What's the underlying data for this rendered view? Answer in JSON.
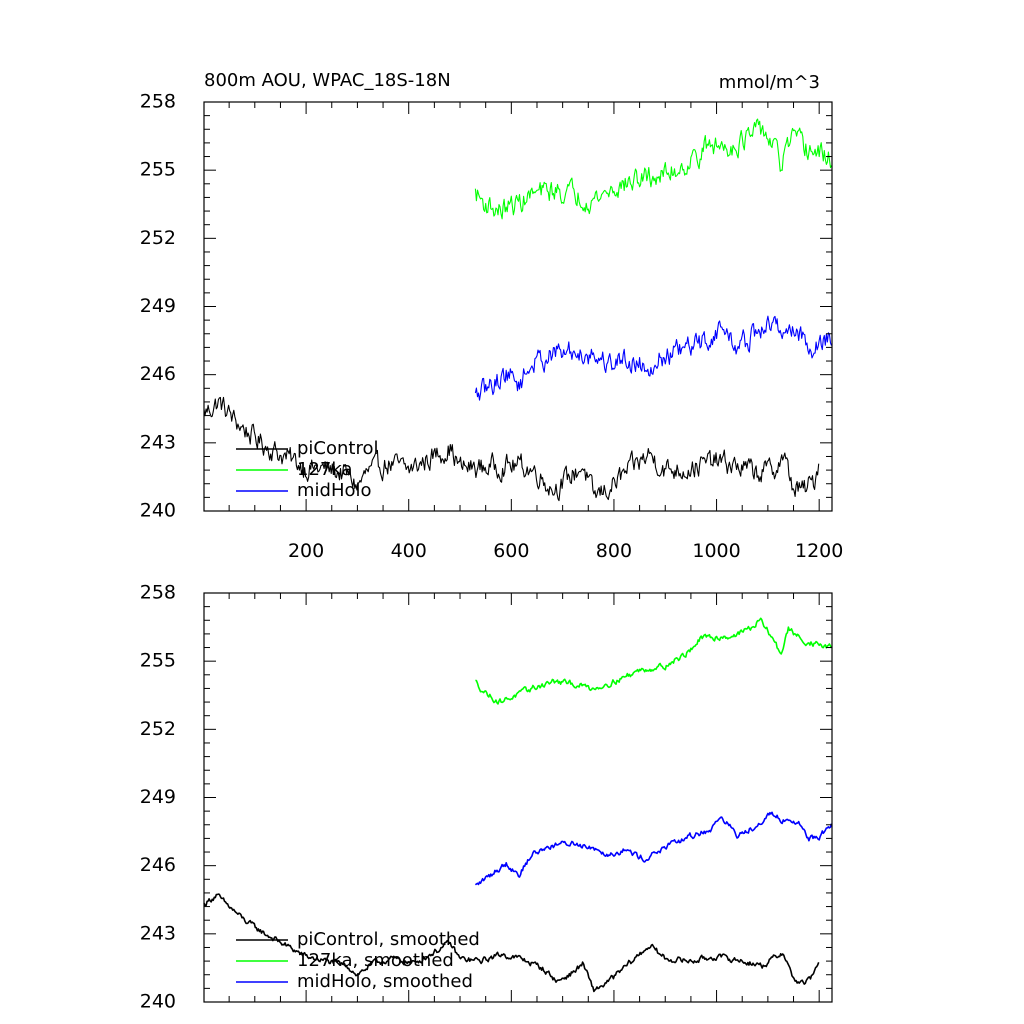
{
  "title_left": "800m AOU, WPAC_18S-18N",
  "title_right": "mmol/m^3",
  "colors": {
    "piControl": "#000000",
    "127ka": "#00ff00",
    "midHolo": "#0000ff"
  },
  "chart_data": [
    {
      "type": "line",
      "panel": "top",
      "xlim": [
        1,
        1225
      ],
      "ylim": [
        240,
        258
      ],
      "yticks": [
        240,
        243,
        246,
        249,
        252,
        255,
        258
      ],
      "ytick_labels": [
        "240",
        "243",
        "246",
        "249",
        "252",
        "255",
        "258"
      ],
      "xticks": [
        200,
        400,
        600,
        800,
        1000,
        1200
      ],
      "xtick_labels": [
        "200",
        "400",
        "600",
        "800",
        "1000",
        "1200"
      ],
      "show_xtick_labels": true,
      "noise": 0.45,
      "series": [
        {
          "name": "piControl",
          "color": "#000000",
          "anchors": [
            [
              1,
              244.3
            ],
            [
              30,
              244.8
            ],
            [
              60,
              244.0
            ],
            [
              100,
              243.2
            ],
            [
              150,
              242.5
            ],
            [
              200,
              241.9
            ],
            [
              250,
              241.8
            ],
            [
              280,
              241.6
            ],
            [
              300,
              241.1
            ],
            [
              320,
              241.7
            ],
            [
              360,
              242.1
            ],
            [
              400,
              241.8
            ],
            [
              440,
              242.3
            ],
            [
              480,
              242.8
            ],
            [
              500,
              241.9
            ],
            [
              540,
              241.9
            ],
            [
              580,
              242.0
            ],
            [
              620,
              242.0
            ],
            [
              650,
              241.7
            ],
            [
              680,
              241.0
            ],
            [
              700,
              241.2
            ],
            [
              740,
              242.0
            ],
            [
              760,
              240.6
            ],
            [
              790,
              241.0
            ],
            [
              830,
              241.8
            ],
            [
              870,
              242.5
            ],
            [
              900,
              241.8
            ],
            [
              950,
              241.9
            ],
            [
              1000,
              242.2
            ],
            [
              1050,
              241.9
            ],
            [
              1080,
              241.7
            ],
            [
              1110,
              241.8
            ],
            [
              1130,
              242.4
            ],
            [
              1150,
              241.0
            ],
            [
              1170,
              240.9
            ],
            [
              1190,
              241.3
            ],
            [
              1200,
              242.3
            ]
          ]
        },
        {
          "name": "127ka",
          "color": "#00ff00",
          "anchors": [
            [
              530,
              254.0
            ],
            [
              545,
              253.6
            ],
            [
              575,
              253.2
            ],
            [
              610,
              253.5
            ],
            [
              640,
              253.9
            ],
            [
              680,
              254.1
            ],
            [
              720,
              254.0
            ],
            [
              760,
              253.7
            ],
            [
              800,
              254.2
            ],
            [
              850,
              254.6
            ],
            [
              900,
              254.8
            ],
            [
              950,
              255.4
            ],
            [
              980,
              256.0
            ],
            [
              1030,
              256.1
            ],
            [
              1070,
              256.5
            ],
            [
              1090,
              256.8
            ],
            [
              1110,
              256.1
            ],
            [
              1125,
              255.2
            ],
            [
              1145,
              256.4
            ],
            [
              1170,
              256.0
            ],
            [
              1200,
              255.7
            ],
            [
              1225,
              255.5
            ]
          ]
        },
        {
          "name": "midHolo",
          "color": "#0000ff",
          "anchors": [
            [
              530,
              245.0
            ],
            [
              560,
              245.5
            ],
            [
              590,
              246.1
            ],
            [
              615,
              245.6
            ],
            [
              640,
              246.5
            ],
            [
              680,
              246.9
            ],
            [
              720,
              247.0
            ],
            [
              760,
              246.9
            ],
            [
              790,
              246.5
            ],
            [
              820,
              246.7
            ],
            [
              860,
              246.4
            ],
            [
              900,
              246.8
            ],
            [
              950,
              247.2
            ],
            [
              990,
              247.6
            ],
            [
              1010,
              248.1
            ],
            [
              1040,
              247.2
            ],
            [
              1080,
              247.8
            ],
            [
              1100,
              248.2
            ],
            [
              1130,
              248.0
            ],
            [
              1160,
              247.9
            ],
            [
              1180,
              247.2
            ],
            [
              1200,
              247.3
            ],
            [
              1225,
              247.8
            ]
          ]
        }
      ],
      "legend": {
        "placement": "bottom-left",
        "entries": [
          {
            "label": "piControl",
            "color": "#000000"
          },
          {
            "label": "127ka",
            "color": "#00ff00"
          },
          {
            "label": "midHolo",
            "color": "#0000ff"
          }
        ]
      }
    },
    {
      "type": "line",
      "panel": "bottom",
      "xlim": [
        1,
        1225
      ],
      "ylim": [
        240,
        258
      ],
      "yticks": [
        240,
        243,
        246,
        249,
        252,
        255,
        258
      ],
      "ytick_labels": [
        "240",
        "243",
        "246",
        "249",
        "252",
        "255",
        "258"
      ],
      "xticks": [
        200,
        400,
        600,
        800,
        1000,
        1200
      ],
      "xtick_labels": [],
      "show_xtick_labels": false,
      "noise": 0.12,
      "series": [
        {
          "name": "piControl, smoothed",
          "color": "#000000",
          "anchors": [
            [
              1,
              244.3
            ],
            [
              25,
              244.7
            ],
            [
              50,
              244.2
            ],
            [
              80,
              243.6
            ],
            [
              120,
              243.0
            ],
            [
              160,
              242.5
            ],
            [
              200,
              242.0
            ],
            [
              240,
              241.8
            ],
            [
              280,
              241.6
            ],
            [
              300,
              241.2
            ],
            [
              330,
              241.7
            ],
            [
              370,
              241.9
            ],
            [
              410,
              241.7
            ],
            [
              450,
              242.2
            ],
            [
              480,
              242.6
            ],
            [
              500,
              241.9
            ],
            [
              540,
              241.8
            ],
            [
              580,
              242.1
            ],
            [
              620,
              241.9
            ],
            [
              660,
              241.5
            ],
            [
              690,
              240.9
            ],
            [
              720,
              241.3
            ],
            [
              740,
              241.7
            ],
            [
              760,
              240.5
            ],
            [
              790,
              240.9
            ],
            [
              830,
              241.7
            ],
            [
              870,
              242.5
            ],
            [
              900,
              241.9
            ],
            [
              950,
              241.8
            ],
            [
              1000,
              242.0
            ],
            [
              1050,
              241.8
            ],
            [
              1090,
              241.6
            ],
            [
              1130,
              242.2
            ],
            [
              1150,
              241.0
            ],
            [
              1170,
              240.8
            ],
            [
              1190,
              241.2
            ],
            [
              1200,
              241.9
            ]
          ]
        },
        {
          "name": "127ka, smoothed",
          "color": "#00ff00",
          "anchors": [
            [
              530,
              254.1
            ],
            [
              545,
              253.7
            ],
            [
              575,
              253.2
            ],
            [
              610,
              253.5
            ],
            [
              640,
              253.8
            ],
            [
              680,
              254.1
            ],
            [
              720,
              254.0
            ],
            [
              760,
              253.8
            ],
            [
              800,
              254.1
            ],
            [
              850,
              254.6
            ],
            [
              900,
              254.8
            ],
            [
              940,
              255.3
            ],
            [
              970,
              256.0
            ],
            [
              1030,
              256.1
            ],
            [
              1070,
              256.5
            ],
            [
              1085,
              256.8
            ],
            [
              1110,
              256.0
            ],
            [
              1125,
              255.3
            ],
            [
              1140,
              256.4
            ],
            [
              1170,
              255.9
            ],
            [
              1200,
              255.7
            ],
            [
              1225,
              255.6
            ]
          ]
        },
        {
          "name": "midHolo, smoothed",
          "color": "#0000ff",
          "anchors": [
            [
              530,
              245.1
            ],
            [
              560,
              245.6
            ],
            [
              590,
              246.1
            ],
            [
              615,
              245.6
            ],
            [
              640,
              246.5
            ],
            [
              680,
              246.9
            ],
            [
              720,
              247.0
            ],
            [
              760,
              246.8
            ],
            [
              790,
              246.5
            ],
            [
              820,
              246.7
            ],
            [
              860,
              246.3
            ],
            [
              900,
              246.8
            ],
            [
              950,
              247.3
            ],
            [
              990,
              247.6
            ],
            [
              1010,
              248.2
            ],
            [
              1040,
              247.3
            ],
            [
              1080,
              247.8
            ],
            [
              1100,
              248.3
            ],
            [
              1130,
              248.0
            ],
            [
              1160,
              247.9
            ],
            [
              1180,
              247.2
            ],
            [
              1200,
              247.3
            ],
            [
              1225,
              247.8
            ]
          ]
        }
      ],
      "legend": {
        "placement": "bottom-left",
        "entries": [
          {
            "label": "piControl, smoothed",
            "color": "#000000"
          },
          {
            "label": "127ka, smoothed",
            "color": "#00ff00"
          },
          {
            "label": "midHolo, smoothed",
            "color": "#0000ff"
          }
        ]
      }
    }
  ]
}
